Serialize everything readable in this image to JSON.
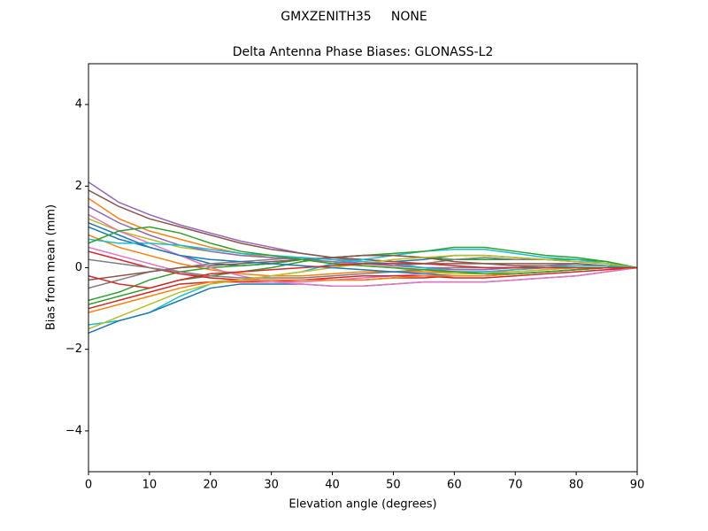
{
  "chart_data": {
    "type": "line",
    "suptitle": "GMXZENITH35     NONE",
    "title": "Delta Antenna Phase Biases: GLONASS-L2",
    "xlabel": "Elevation angle (degrees)",
    "ylabel": "Bias from mean (mm)",
    "xlim": [
      0,
      90
    ],
    "ylim": [
      -5,
      5
    ],
    "xticks": [
      0,
      10,
      20,
      30,
      40,
      50,
      60,
      70,
      80,
      90
    ],
    "yticks": [
      {
        "value": -4,
        "label": "−4"
      },
      {
        "value": -2,
        "label": "−2"
      },
      0,
      2,
      4
    ],
    "x": [
      0,
      5,
      10,
      15,
      20,
      25,
      30,
      35,
      40,
      45,
      50,
      55,
      60,
      65,
      70,
      75,
      80,
      85,
      90
    ],
    "series": [
      {
        "color": "#1f77b4",
        "values": [
          1.0,
          0.7,
          0.5,
          0.3,
          0.1,
          0.05,
          0.1,
          0.2,
          0.25,
          0.2,
          0.15,
          0.2,
          0.3,
          0.3,
          0.25,
          0.2,
          0.15,
          0.1,
          0
        ]
      },
      {
        "color": "#ff7f0e",
        "values": [
          1.7,
          1.2,
          0.9,
          0.7,
          0.5,
          0.35,
          0.25,
          0.2,
          0.15,
          0.05,
          0.0,
          -0.05,
          -0.1,
          -0.1,
          -0.05,
          0.0,
          0.05,
          0.05,
          0
        ]
      },
      {
        "color": "#2ca02c",
        "values": [
          -0.9,
          -0.7,
          -0.5,
          -0.3,
          -0.2,
          -0.1,
          0.0,
          0.15,
          0.25,
          0.3,
          0.3,
          0.25,
          0.2,
          0.2,
          0.2,
          0.2,
          0.2,
          0.15,
          0
        ]
      },
      {
        "color": "#d62728",
        "values": [
          -1.0,
          -0.8,
          -0.6,
          -0.4,
          -0.35,
          -0.35,
          -0.35,
          -0.3,
          -0.3,
          -0.3,
          -0.25,
          -0.25,
          -0.2,
          -0.2,
          -0.15,
          -0.1,
          -0.05,
          0.0,
          0
        ]
      },
      {
        "color": "#9467bd",
        "values": [
          2.1,
          1.6,
          1.3,
          1.05,
          0.85,
          0.65,
          0.5,
          0.35,
          0.25,
          0.15,
          0.05,
          0.0,
          -0.05,
          -0.05,
          0.0,
          0.05,
          0.1,
          0.05,
          0
        ]
      },
      {
        "color": "#8c564b",
        "values": [
          1.9,
          1.5,
          1.2,
          1.0,
          0.8,
          0.6,
          0.45,
          0.35,
          0.25,
          0.2,
          0.15,
          0.1,
          0.1,
          0.1,
          0.1,
          0.1,
          0.1,
          0.05,
          0
        ]
      },
      {
        "color": "#e377c2",
        "values": [
          0.5,
          0.3,
          0.1,
          -0.1,
          -0.25,
          -0.3,
          -0.35,
          -0.35,
          -0.3,
          -0.25,
          -0.2,
          -0.15,
          -0.1,
          -0.1,
          -0.1,
          -0.05,
          0.0,
          0.0,
          0
        ]
      },
      {
        "color": "#7f7f7f",
        "values": [
          -0.5,
          -0.3,
          -0.1,
          0.0,
          0.1,
          0.15,
          0.2,
          0.25,
          0.2,
          0.1,
          0.05,
          0.1,
          0.2,
          0.25,
          0.2,
          0.2,
          0.15,
          0.1,
          0
        ]
      },
      {
        "color": "#bcbd22",
        "values": [
          1.2,
          0.9,
          0.7,
          0.5,
          0.4,
          0.3,
          0.25,
          0.2,
          0.1,
          0.05,
          0.0,
          -0.1,
          -0.15,
          -0.15,
          -0.1,
          -0.05,
          0.0,
          0.0,
          0
        ]
      },
      {
        "color": "#17becf",
        "values": [
          -1.4,
          -1.3,
          -1.1,
          -0.7,
          -0.4,
          -0.3,
          -0.2,
          -0.1,
          0.1,
          0.2,
          0.3,
          0.4,
          0.45,
          0.45,
          0.35,
          0.25,
          0.2,
          0.1,
          0
        ]
      },
      {
        "color": "#1f77b4",
        "values": [
          -1.6,
          -1.3,
          -1.1,
          -0.8,
          -0.5,
          -0.4,
          -0.4,
          -0.4,
          -0.45,
          -0.45,
          -0.4,
          -0.35,
          -0.35,
          -0.35,
          -0.3,
          -0.25,
          -0.2,
          -0.1,
          0
        ]
      },
      {
        "color": "#ff7f0e",
        "values": [
          0.8,
          0.5,
          0.3,
          0.1,
          -0.05,
          -0.15,
          -0.2,
          -0.2,
          -0.15,
          -0.1,
          -0.1,
          -0.1,
          -0.1,
          -0.1,
          -0.05,
          0.0,
          0.05,
          0.05,
          0
        ]
      },
      {
        "color": "#2ca02c",
        "values": [
          -0.8,
          -0.6,
          -0.3,
          -0.1,
          0.0,
          0.05,
          0.1,
          0.2,
          0.25,
          0.3,
          0.35,
          0.4,
          0.5,
          0.5,
          0.4,
          0.3,
          0.25,
          0.15,
          0
        ]
      },
      {
        "color": "#d62728",
        "values": [
          0.4,
          0.2,
          0.0,
          -0.15,
          -0.25,
          -0.3,
          -0.3,
          -0.3,
          -0.25,
          -0.2,
          -0.2,
          -0.2,
          -0.25,
          -0.25,
          -0.2,
          -0.15,
          -0.1,
          -0.05,
          0
        ]
      },
      {
        "color": "#9467bd",
        "values": [
          1.5,
          1.1,
          0.8,
          0.55,
          0.4,
          0.3,
          0.25,
          0.2,
          0.15,
          0.1,
          0.05,
          0.0,
          0.0,
          0.0,
          0.0,
          0.05,
          0.05,
          0.05,
          0
        ]
      },
      {
        "color": "#8c564b",
        "values": [
          -0.3,
          -0.2,
          -0.1,
          0.0,
          0.05,
          0.1,
          0.15,
          0.2,
          0.25,
          0.3,
          0.3,
          0.25,
          0.15,
          0.1,
          0.05,
          0.05,
          0.05,
          0.05,
          0
        ]
      },
      {
        "color": "#e377c2",
        "values": [
          1.3,
          0.9,
          0.6,
          0.3,
          0.0,
          -0.2,
          -0.35,
          -0.4,
          -0.45,
          -0.45,
          -0.4,
          -0.35,
          -0.35,
          -0.35,
          -0.3,
          -0.25,
          -0.2,
          -0.1,
          0
        ]
      },
      {
        "color": "#7f7f7f",
        "values": [
          0.2,
          0.1,
          0.0,
          -0.1,
          -0.2,
          -0.25,
          -0.25,
          -0.25,
          -0.2,
          -0.15,
          -0.1,
          -0.05,
          0.0,
          0.0,
          0.0,
          0.05,
          0.05,
          0.05,
          0
        ]
      },
      {
        "color": "#bcbd22",
        "values": [
          -1.5,
          -1.2,
          -0.9,
          -0.6,
          -0.4,
          -0.3,
          -0.2,
          -0.1,
          0.0,
          0.1,
          0.2,
          0.25,
          0.3,
          0.3,
          0.25,
          0.2,
          0.15,
          0.1,
          0
        ]
      },
      {
        "color": "#17becf",
        "values": [
          0.7,
          0.6,
          0.6,
          0.55,
          0.45,
          0.35,
          0.3,
          0.25,
          0.2,
          0.15,
          0.1,
          0.0,
          -0.1,
          -0.1,
          -0.05,
          0.0,
          0.05,
          0.05,
          0
        ]
      },
      {
        "color": "#1f77b4",
        "values": [
          1.1,
          0.8,
          0.5,
          0.3,
          0.2,
          0.15,
          0.1,
          0.05,
          0.0,
          -0.05,
          -0.1,
          -0.15,
          -0.2,
          -0.2,
          -0.15,
          -0.1,
          -0.05,
          0.0,
          0
        ]
      },
      {
        "color": "#ff7f0e",
        "values": [
          -1.1,
          -0.9,
          -0.7,
          -0.5,
          -0.35,
          -0.3,
          -0.3,
          -0.3,
          -0.3,
          -0.3,
          -0.25,
          -0.2,
          -0.2,
          -0.2,
          -0.15,
          -0.1,
          -0.05,
          0.0,
          0
        ]
      },
      {
        "color": "#2ca02c",
        "values": [
          0.6,
          0.9,
          1.0,
          0.85,
          0.6,
          0.4,
          0.3,
          0.2,
          0.1,
          0.05,
          0.0,
          -0.05,
          -0.1,
          -0.15,
          -0.15,
          -0.1,
          -0.05,
          0.0,
          0
        ]
      },
      {
        "color": "#d62728",
        "values": [
          -0.2,
          -0.4,
          -0.5,
          -0.3,
          -0.15,
          -0.1,
          -0.05,
          0.0,
          0.05,
          0.1,
          0.1,
          0.1,
          0.05,
          0.0,
          0.0,
          0.0,
          0.0,
          0.0,
          0
        ]
      }
    ]
  }
}
